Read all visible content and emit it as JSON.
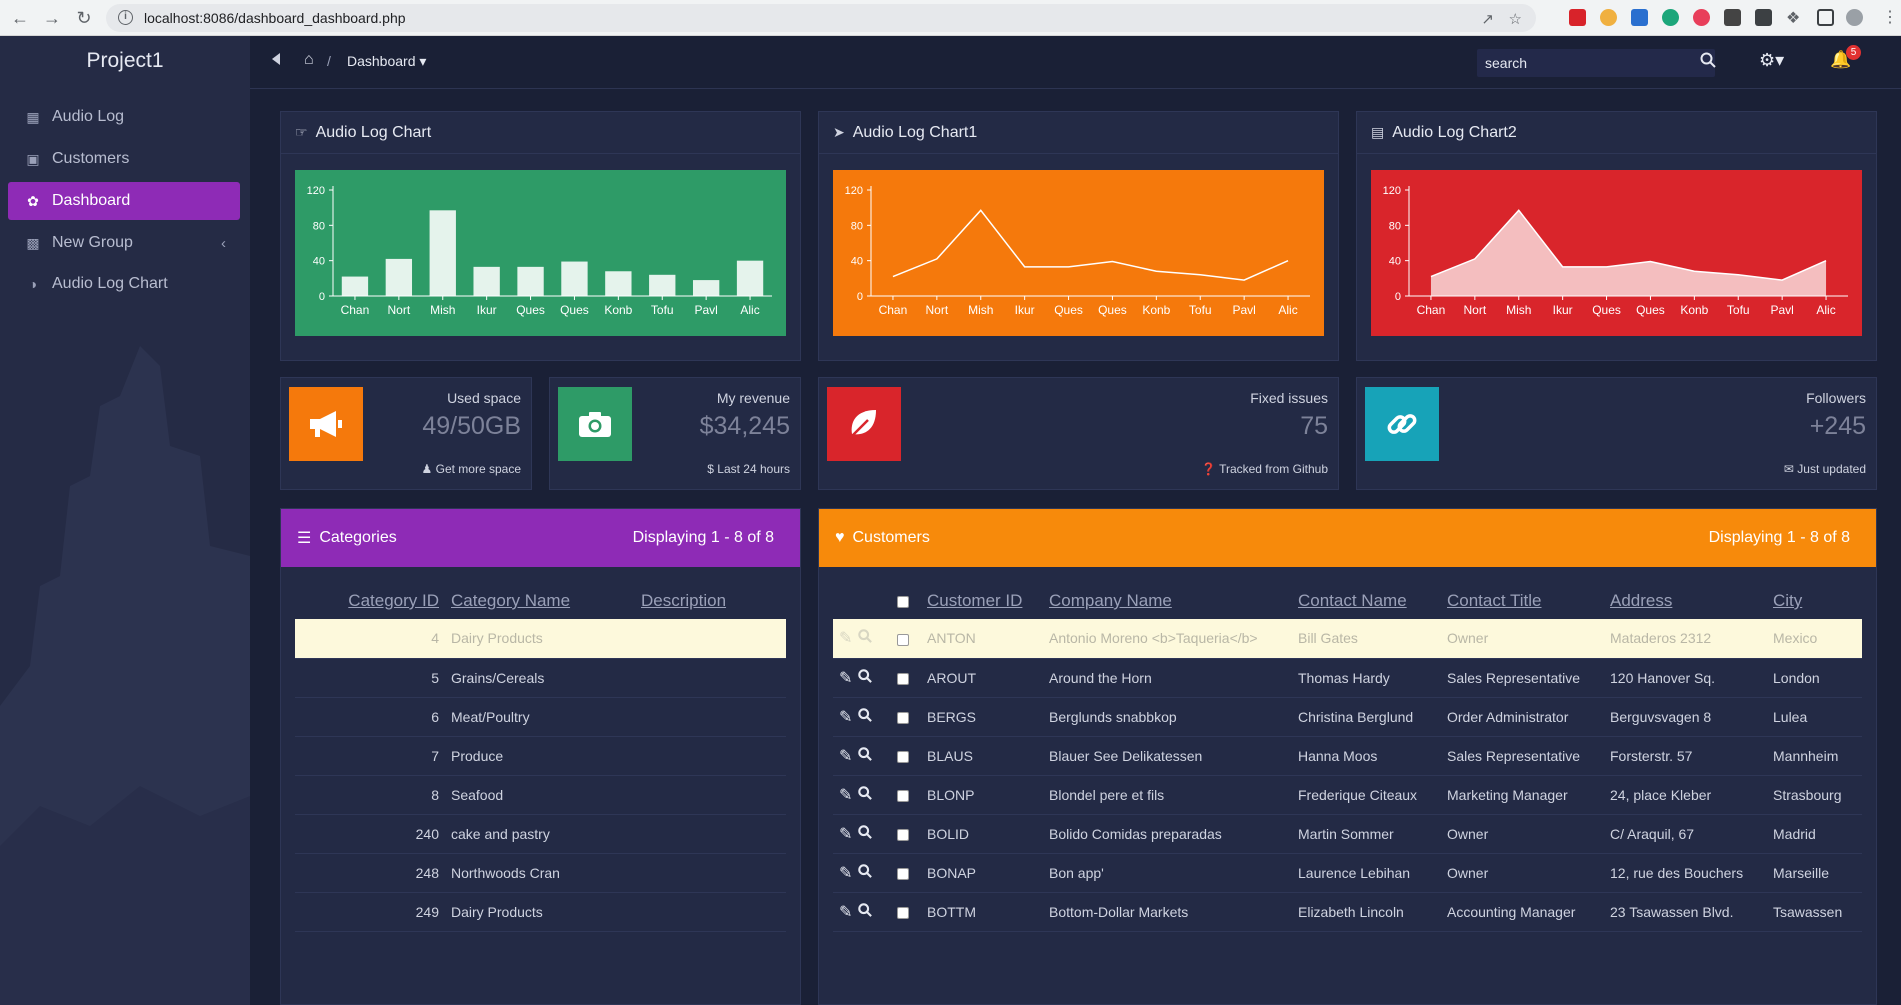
{
  "browser": {
    "url": "localhost:8086/dashboard_dashboard.php"
  },
  "brand": "Project1",
  "sidebar": {
    "items": [
      {
        "label": "Audio Log",
        "icon": "calendar-icon"
      },
      {
        "label": "Customers",
        "icon": "briefcase-icon"
      },
      {
        "label": "Dashboard",
        "icon": "leaf-icon",
        "active": true
      },
      {
        "label": "New Group",
        "icon": "bar-chart-icon"
      },
      {
        "label": "Audio Log Chart",
        "icon": "pie-chart-icon"
      }
    ]
  },
  "topbar": {
    "breadcrumb": "Dashboard",
    "separator": "/",
    "search_placeholder": "search",
    "notification_count": "5"
  },
  "charts": [
    {
      "title": "Audio Log Chart",
      "icon": "hand-point-icon",
      "color": "#2e9b67"
    },
    {
      "title": "Audio Log Chart1",
      "icon": "paper-plane-icon",
      "color": "#f5790c"
    },
    {
      "title": "Audio Log Chart2",
      "icon": "image-icon",
      "color": "#d9252b"
    }
  ],
  "chart_data": [
    {
      "type": "bar",
      "categories": [
        "Chan",
        "Nort",
        "Mish",
        "Ikur",
        "Ques",
        "Ques",
        "Konb",
        "Tofu",
        "Pavl",
        "Alic"
      ],
      "values": [
        22,
        42,
        97,
        33,
        33,
        39,
        28,
        24,
        18,
        40
      ],
      "ylim": [
        0,
        120
      ],
      "yticks": [
        0,
        40,
        80,
        120
      ]
    },
    {
      "type": "line",
      "categories": [
        "Chan",
        "Nort",
        "Mish",
        "Ikur",
        "Ques",
        "Ques",
        "Konb",
        "Tofu",
        "Pavl",
        "Alic"
      ],
      "values": [
        22,
        42,
        97,
        33,
        33,
        39,
        28,
        24,
        18,
        40
      ],
      "ylim": [
        0,
        120
      ],
      "yticks": [
        0,
        40,
        80,
        120
      ]
    },
    {
      "type": "area",
      "categories": [
        "Chan",
        "Nort",
        "Mish",
        "Ikur",
        "Ques",
        "Ques",
        "Konb",
        "Tofu",
        "Pavl",
        "Alic"
      ],
      "values": [
        22,
        42,
        97,
        33,
        33,
        39,
        28,
        24,
        18,
        40
      ],
      "ylim": [
        0,
        120
      ],
      "yticks": [
        0,
        40,
        80,
        120
      ]
    }
  ],
  "stats": [
    {
      "label": "Used space",
      "value": "49/50GB",
      "footer": "Get more space",
      "icon": "bullhorn-icon",
      "color": "#f5790c"
    },
    {
      "label": "My revenue",
      "value": "$34,245",
      "footer": "$ Last 24 hours",
      "icon": "camera-icon",
      "color": "#2e9b67"
    },
    {
      "label": "Fixed issues",
      "value": "75",
      "footer": "Tracked from Github",
      "icon": "leaf-icon",
      "color": "#d9252b"
    },
    {
      "label": "Followers",
      "value": "+245",
      "footer": "Just updated",
      "icon": "link-icon",
      "color": "#17a3b8"
    }
  ],
  "categories": {
    "title": "Categories",
    "display": "Displaying 1 - 8 of 8",
    "color": "#8e2bb6",
    "columns": [
      "Category ID",
      "Category Name",
      "Description"
    ],
    "rows": [
      [
        "4",
        "Dairy Products",
        ""
      ],
      [
        "5",
        "Grains/Cereals",
        ""
      ],
      [
        "6",
        "Meat/Poultry",
        ""
      ],
      [
        "7",
        "Produce",
        ""
      ],
      [
        "8",
        "Seafood",
        ""
      ],
      [
        "240",
        "cake and pastry",
        ""
      ],
      [
        "248",
        "Northwoods Cran",
        ""
      ],
      [
        "249",
        "Dairy Products",
        ""
      ]
    ]
  },
  "customers": {
    "title": "Customers",
    "display": "Displaying 1 - 8 of 8",
    "color": "#f78a0b",
    "columns": [
      "Customer ID",
      "Company Name",
      "Contact Name",
      "Contact Title",
      "Address",
      "City"
    ],
    "rows": [
      [
        "ANTON",
        "Antonio Moreno <b>Taqueria</b>",
        "Bill Gates",
        "Owner",
        "Mataderos 2312",
        "Mexico"
      ],
      [
        "AROUT",
        "Around the Horn",
        "Thomas Hardy",
        "Sales Representative",
        "120 Hanover Sq.",
        "London"
      ],
      [
        "BERGS",
        "Berglunds snabbkop",
        "Christina Berglund",
        "Order Administrator",
        "Berguvsvagen 8",
        "Lulea"
      ],
      [
        "BLAUS",
        "Blauer See Delikatessen",
        "Hanna Moos",
        "Sales Representative",
        "Forsterstr. 57",
        "Mannheim"
      ],
      [
        "BLONP",
        "Blondel pere et fils",
        "Frederique Citeaux",
        "Marketing Manager",
        "24, place Kleber",
        "Strasbourg"
      ],
      [
        "BOLID",
        "Bolido Comidas preparadas",
        "Martin Sommer",
        "Owner",
        "C/ Araquil, 67",
        "Madrid"
      ],
      [
        "BONAP",
        "Bon app'",
        "Laurence Lebihan",
        "Owner",
        "12, rue des Bouchers",
        "Marseille"
      ],
      [
        "BOTTM",
        "Bottom-Dollar Markets",
        "Elizabeth Lincoln",
        "Accounting Manager",
        "23 Tsawassen Blvd.",
        "Tsawassen"
      ]
    ]
  }
}
